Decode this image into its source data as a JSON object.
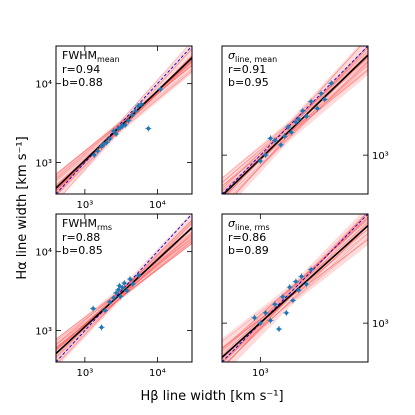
{
  "figure": {
    "xlabel": "Hβ line width [km s⁻¹]",
    "ylabel": "Hα line width [km s⁻¹]"
  },
  "colors": {
    "points": "#1f77b4",
    "fit": "#000000",
    "samples": "#ff4d4d",
    "one_to_one": "#0000cc",
    "band": "#ffc0c0"
  },
  "chart_data": [
    {
      "type": "scatter",
      "label": "FWHM",
      "label_sub": "mean",
      "stats": [
        "r=0.94",
        "b=0.88"
      ],
      "xscale": "log",
      "yscale": "log",
      "xlim": [
        400,
        30000
      ],
      "ylim": [
        400,
        30000
      ],
      "xticks": [
        {
          "v": 1000,
          "t": "10³"
        },
        {
          "v": 10000,
          "t": "10⁴"
        }
      ],
      "yticks": [
        {
          "v": 1000,
          "t": "10³"
        },
        {
          "v": 10000,
          "t": "10⁴"
        }
      ],
      "fit": {
        "slope": 0.88,
        "pivot_x": 3000,
        "pivot_y": 2800
      },
      "points": [
        {
          "x": 1350,
          "y": 1250
        },
        {
          "x": 1500,
          "y": 1400
        },
        {
          "x": 1700,
          "y": 1600
        },
        {
          "x": 1800,
          "y": 1700
        },
        {
          "x": 2000,
          "y": 1800
        },
        {
          "x": 2200,
          "y": 2000
        },
        {
          "x": 2500,
          "y": 2500
        },
        {
          "x": 2700,
          "y": 2300
        },
        {
          "x": 2900,
          "y": 2700
        },
        {
          "x": 3100,
          "y": 2800
        },
        {
          "x": 3300,
          "y": 2900
        },
        {
          "x": 3600,
          "y": 3000
        },
        {
          "x": 4000,
          "y": 3400
        },
        {
          "x": 4500,
          "y": 4000
        },
        {
          "x": 5000,
          "y": 4500
        },
        {
          "x": 5400,
          "y": 5200
        },
        {
          "x": 6000,
          "y": 5500
        },
        {
          "x": 7500,
          "y": 2700
        },
        {
          "x": 11000,
          "y": 8500
        }
      ]
    },
    {
      "type": "scatter",
      "label": "σ",
      "label_sub": "line, mean",
      "stats": [
        "r=0.91",
        "b=0.95"
      ],
      "xscale": "log",
      "yscale": "log",
      "xlim": [
        500,
        7000
      ],
      "ylim": [
        500,
        7000
      ],
      "xticks": [],
      "yticks": [
        {
          "v": 1000,
          "t": "10³"
        }
      ],
      "fit": {
        "slope": 0.95,
        "pivot_x": 1700,
        "pivot_y": 1550
      },
      "points": [
        {
          "x": 1000,
          "y": 900
        },
        {
          "x": 1100,
          "y": 1000
        },
        {
          "x": 1200,
          "y": 1350
        },
        {
          "x": 1300,
          "y": 1300
        },
        {
          "x": 1450,
          "y": 1200
        },
        {
          "x": 1550,
          "y": 1400
        },
        {
          "x": 1650,
          "y": 1650
        },
        {
          "x": 1750,
          "y": 1500
        },
        {
          "x": 1900,
          "y": 1800
        },
        {
          "x": 2000,
          "y": 1900
        },
        {
          "x": 2150,
          "y": 2200
        },
        {
          "x": 2300,
          "y": 2000
        },
        {
          "x": 2500,
          "y": 2600
        },
        {
          "x": 2800,
          "y": 2300
        },
        {
          "x": 3000,
          "y": 3000
        },
        {
          "x": 3200,
          "y": 2700
        },
        {
          "x": 3600,
          "y": 3600
        }
      ]
    },
    {
      "type": "scatter",
      "label": "FWHM",
      "label_sub": "rms",
      "stats": [
        "r=0.88",
        "b=0.85"
      ],
      "xscale": "log",
      "yscale": "log",
      "xlim": [
        400,
        30000
      ],
      "ylim": [
        400,
        30000
      ],
      "xticks": [
        {
          "v": 1000,
          "t": "10³"
        },
        {
          "v": 10000,
          "t": "10⁴"
        }
      ],
      "yticks": [
        {
          "v": 1000,
          "t": "10³"
        },
        {
          "v": 10000,
          "t": "10⁴"
        }
      ],
      "fit": {
        "slope": 0.85,
        "pivot_x": 3200,
        "pivot_y": 3000
      },
      "points": [
        {
          "x": 1300,
          "y": 1900
        },
        {
          "x": 1700,
          "y": 1100
        },
        {
          "x": 1900,
          "y": 1800
        },
        {
          "x": 2200,
          "y": 2300
        },
        {
          "x": 2500,
          "y": 2600
        },
        {
          "x": 2700,
          "y": 3000
        },
        {
          "x": 2900,
          "y": 3300
        },
        {
          "x": 3100,
          "y": 2700
        },
        {
          "x": 3300,
          "y": 3500
        },
        {
          "x": 3500,
          "y": 4000
        },
        {
          "x": 3800,
          "y": 3200
        },
        {
          "x": 4200,
          "y": 4500
        },
        {
          "x": 4600,
          "y": 3900
        },
        {
          "x": 5500,
          "y": 5000
        },
        {
          "x": 3000,
          "y": 3700
        }
      ]
    },
    {
      "type": "scatter",
      "label": "σ",
      "label_sub": "line, rms",
      "stats": [
        "r=0.86",
        "b=0.89"
      ],
      "xscale": "log",
      "yscale": "log",
      "xlim": [
        500,
        7000
      ],
      "ylim": [
        500,
        7000
      ],
      "xticks": [
        {
          "v": 1000,
          "t": "10³"
        }
      ],
      "yticks": [
        {
          "v": 1000,
          "t": "10³"
        }
      ],
      "fit": {
        "slope": 0.89,
        "pivot_x": 1800,
        "pivot_y": 1700
      },
      "points": [
        {
          "x": 900,
          "y": 1100
        },
        {
          "x": 1000,
          "y": 1000
        },
        {
          "x": 1100,
          "y": 1200
        },
        {
          "x": 1200,
          "y": 1050
        },
        {
          "x": 1300,
          "y": 1400
        },
        {
          "x": 1400,
          "y": 900
        },
        {
          "x": 1500,
          "y": 1600
        },
        {
          "x": 1600,
          "y": 1200
        },
        {
          "x": 1700,
          "y": 1900
        },
        {
          "x": 1800,
          "y": 1500
        },
        {
          "x": 1900,
          "y": 2100
        },
        {
          "x": 2000,
          "y": 1800
        },
        {
          "x": 2100,
          "y": 2300
        },
        {
          "x": 2300,
          "y": 2000
        },
        {
          "x": 2500,
          "y": 2600
        }
      ]
    }
  ]
}
